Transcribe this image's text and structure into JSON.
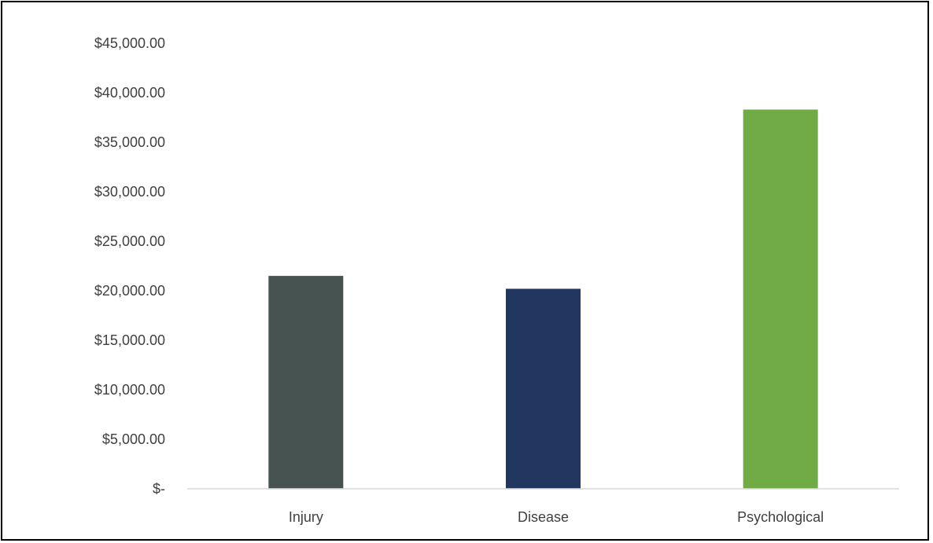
{
  "chart_data": {
    "type": "bar",
    "categories": [
      "Injury",
      "Disease",
      "Psychological"
    ],
    "values": [
      21500,
      20200,
      38300
    ],
    "colors": [
      "#46524f",
      "#213760",
      "#70ab46"
    ],
    "ylim": [
      0,
      45000
    ],
    "yticks": [
      0,
      5000,
      10000,
      15000,
      20000,
      25000,
      30000,
      35000,
      40000,
      45000
    ],
    "ytick_labels": [
      "$-",
      "$5,000.00",
      "$10,000.00",
      "$15,000.00",
      "$20,000.00",
      "$25,000.00",
      "$30,000.00",
      "$35,000.00",
      "$40,000.00",
      "$45,000.00"
    ],
    "grid": false,
    "axis_color": "#d9d9d9",
    "title": "",
    "xlabel": "",
    "ylabel": ""
  }
}
